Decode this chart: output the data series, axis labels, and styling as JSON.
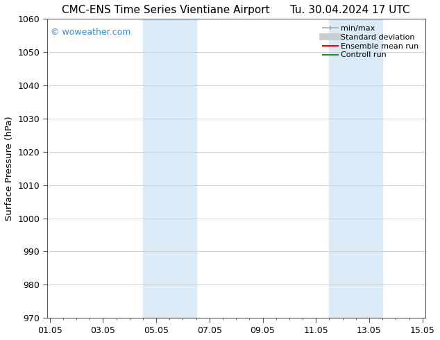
{
  "title": "CMC-ENS Time Series Vientiane Airport      Tu. 30.04.2024 17 UTC",
  "ylabel": "Surface Pressure (hPa)",
  "ylim": [
    970,
    1060
  ],
  "yticks": [
    970,
    980,
    990,
    1000,
    1010,
    1020,
    1030,
    1040,
    1050,
    1060
  ],
  "xtick_labels": [
    "01.05",
    "03.05",
    "05.05",
    "07.05",
    "09.05",
    "11.05",
    "13.05",
    "15.05"
  ],
  "xtick_positions": [
    0,
    2,
    4,
    6,
    8,
    10,
    12,
    14
  ],
  "xlim": [
    -0.1,
    14.1
  ],
  "shaded_bands": [
    {
      "x_start": 3.5,
      "x_end": 5.5,
      "color": "#daeaf7"
    },
    {
      "x_start": 10.5,
      "x_end": 12.5,
      "color": "#daeaf7"
    }
  ],
  "watermark": "© woweather.com",
  "watermark_color": "#1e90ff",
  "background_color": "#ffffff",
  "plot_bg_color": "#ffffff",
  "grid_color": "#cccccc",
  "legend_items": [
    {
      "label": "min/max",
      "color": "#aaaaaa",
      "lw": 1.2,
      "ls": "-",
      "type": "minmax"
    },
    {
      "label": "Standard deviation",
      "color": "#cccccc",
      "lw": 7,
      "ls": "-",
      "type": "band"
    },
    {
      "label": "Ensemble mean run",
      "color": "#ff0000",
      "lw": 1.5,
      "ls": "-",
      "type": "line"
    },
    {
      "label": "Controll run",
      "color": "#228B22",
      "lw": 1.5,
      "ls": "-",
      "type": "line"
    }
  ],
  "title_fontsize": 11,
  "tick_fontsize": 9,
  "ylabel_fontsize": 9.5,
  "legend_fontsize": 8,
  "minor_tick_count": 4
}
